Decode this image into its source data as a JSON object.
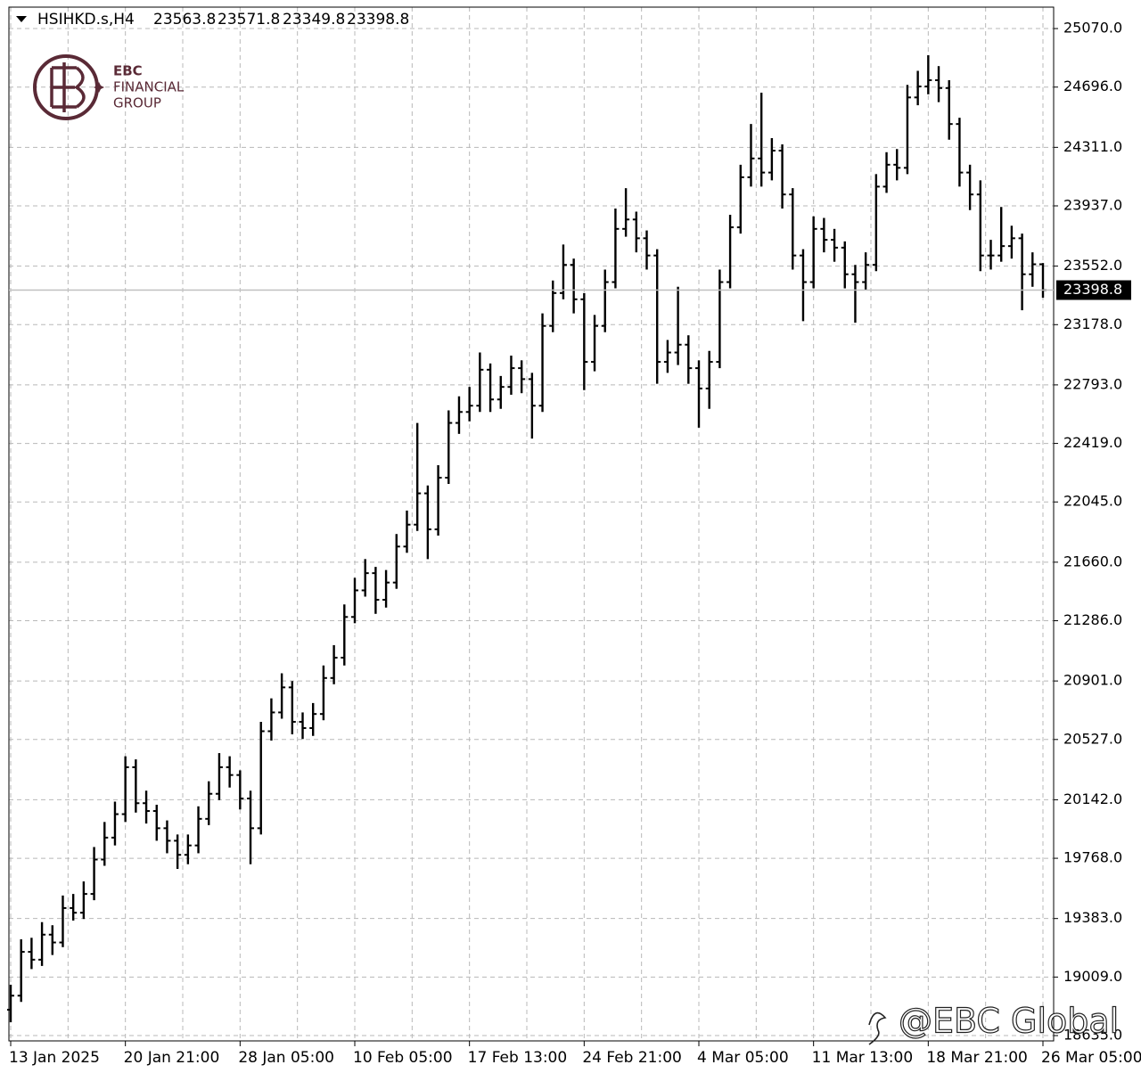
{
  "chart_data": {
    "type": "ohlc",
    "title": "HSIHKD.s,H4",
    "color": "#000000",
    "grid": true,
    "ylim": [
      18601,
      25207
    ],
    "yticks": [
      {
        "value": 25070,
        "label": "25070.0"
      },
      {
        "value": 24696,
        "label": "24696.0"
      },
      {
        "value": 24311,
        "label": "24311.0"
      },
      {
        "value": 23937,
        "label": "23937.0"
      },
      {
        "value": 23552,
        "label": "23552.0"
      },
      {
        "value": 23178,
        "label": "23178.0"
      },
      {
        "value": 22793,
        "label": "22793.0"
      },
      {
        "value": 22419,
        "label": "22419.0"
      },
      {
        "value": 22045,
        "label": "22045.0"
      },
      {
        "value": 21660,
        "label": "21660.0"
      },
      {
        "value": 21286,
        "label": "21286.0"
      },
      {
        "value": 20901,
        "label": "20901.0"
      },
      {
        "value": 20527,
        "label": "20527.0"
      },
      {
        "value": 20142,
        "label": "20142.0"
      },
      {
        "value": 19768,
        "label": "19768.0"
      },
      {
        "value": 19383,
        "label": "19383.0"
      },
      {
        "value": 19009,
        "label": "19009.0"
      },
      {
        "value": 18635,
        "label": "18635.0"
      }
    ],
    "categories": [
      "13 Jan 2025",
      null,
      null,
      null,
      null,
      null,
      null,
      null,
      null,
      null,
      null,
      "20 Jan 21:00",
      null,
      null,
      null,
      null,
      null,
      null,
      null,
      null,
      null,
      null,
      "28 Jan 05:00",
      null,
      null,
      null,
      null,
      null,
      null,
      null,
      null,
      null,
      null,
      "10 Feb 05:00",
      null,
      null,
      null,
      null,
      null,
      null,
      null,
      null,
      null,
      null,
      "17 Feb 13:00",
      null,
      null,
      null,
      null,
      null,
      null,
      null,
      null,
      null,
      null,
      "24 Feb 21:00",
      null,
      null,
      null,
      null,
      null,
      null,
      null,
      null,
      null,
      null,
      "4 Mar 05:00",
      null,
      null,
      null,
      null,
      null,
      null,
      null,
      null,
      null,
      null,
      "11 Mar 13:00",
      null,
      null,
      null,
      null,
      null,
      null,
      null,
      null,
      null,
      null,
      "18 Mar 21:00",
      null,
      null,
      null,
      null,
      null,
      null,
      null,
      null,
      null,
      null,
      "26 Mar 05:00"
    ],
    "open": [
      18800,
      18890,
      19170,
      19120,
      19280,
      19230,
      19450,
      19420,
      19540,
      19760,
      19900,
      20050,
      20350,
      20120,
      20070,
      19960,
      19880,
      19790,
      19850,
      20020,
      20180,
      20350,
      20300,
      20150,
      19960,
      20580,
      20700,
      20860,
      20640,
      20600,
      20690,
      20920,
      21050,
      21310,
      21480,
      21590,
      21420,
      21530,
      21760,
      21900,
      22100,
      21870,
      22200,
      22550,
      22620,
      22660,
      22890,
      22700,
      22780,
      22900,
      22830,
      22660,
      23170,
      23380,
      23560,
      23340,
      22940,
      23170,
      23450,
      23790,
      23850,
      23730,
      23620,
      22940,
      23000,
      23050,
      22900,
      22770,
      22940,
      23450,
      23800,
      24120,
      24240,
      24150,
      24290,
      24010,
      23620,
      23450,
      23790,
      23720,
      23670,
      23500,
      23450,
      23560,
      24060,
      24200,
      24180,
      24630,
      24700,
      24740,
      24690,
      24460,
      24150,
      24010,
      23620,
      23620,
      23680,
      23730,
      23500,
      23563.8
    ],
    "high": [
      18960,
      19250,
      19260,
      19360,
      19340,
      19530,
      19540,
      19620,
      19840,
      20000,
      20130,
      20420,
      20400,
      20200,
      20110,
      20010,
      19920,
      19920,
      20100,
      20260,
      20440,
      20420,
      20330,
      20200,
      20640,
      20790,
      20950,
      20900,
      20700,
      20760,
      21000,
      21130,
      21390,
      21560,
      21680,
      21630,
      21610,
      21840,
      21990,
      22550,
      22150,
      22280,
      22630,
      22720,
      22780,
      23000,
      22930,
      22850,
      22980,
      22950,
      22870,
      23250,
      23460,
      23690,
      23600,
      23380,
      23240,
      23530,
      23920,
      24050,
      23900,
      23780,
      23660,
      23080,
      23420,
      23110,
      22950,
      23010,
      23530,
      23880,
      24200,
      24460,
      24660,
      24370,
      24330,
      24050,
      23660,
      23870,
      23860,
      23790,
      23710,
      23560,
      23640,
      24140,
      24280,
      24300,
      24710,
      24800,
      24900,
      24830,
      24740,
      24500,
      24200,
      24100,
      23720,
      23930,
      23810,
      23760,
      23640,
      23571.8
    ],
    "low": [
      18720,
      18850,
      19060,
      19080,
      19150,
      19200,
      19370,
      19380,
      19500,
      19720,
      19850,
      20000,
      20060,
      19990,
      19880,
      19800,
      19700,
      19730,
      19800,
      19980,
      20140,
      20220,
      20080,
      19730,
      19920,
      20520,
      20660,
      20560,
      20530,
      20550,
      20650,
      20880,
      21000,
      21270,
      21440,
      21330,
      21370,
      21490,
      21720,
      21860,
      21680,
      21830,
      22160,
      22480,
      22560,
      22620,
      22620,
      22640,
      22730,
      22740,
      22450,
      22620,
      23130,
      23340,
      23250,
      22760,
      22880,
      23130,
      23410,
      23740,
      23640,
      23530,
      22800,
      22870,
      22920,
      22800,
      22520,
      22640,
      22900,
      23410,
      23760,
      24060,
      24060,
      24100,
      23920,
      23530,
      23200,
      23410,
      23640,
      23580,
      23410,
      23190,
      23400,
      23520,
      24020,
      24100,
      24140,
      24580,
      24650,
      24600,
      24360,
      24060,
      23910,
      23520,
      23530,
      23580,
      23600,
      23270,
      23420,
      23349.8
    ],
    "close": [
      18890,
      19170,
      19120,
      19280,
      19230,
      19450,
      19420,
      19540,
      19760,
      19900,
      20050,
      20350,
      20120,
      20070,
      19960,
      19880,
      19790,
      19850,
      20020,
      20180,
      20350,
      20300,
      20150,
      19960,
      20580,
      20700,
      20860,
      20640,
      20600,
      20690,
      20920,
      21050,
      21310,
      21480,
      21590,
      21420,
      21530,
      21760,
      21900,
      22100,
      21870,
      22200,
      22550,
      22620,
      22660,
      22890,
      22700,
      22780,
      22900,
      22830,
      22660,
      23170,
      23380,
      23560,
      23340,
      22940,
      23170,
      23450,
      23790,
      23850,
      23730,
      23620,
      22940,
      23000,
      23050,
      22900,
      22770,
      22940,
      23450,
      23800,
      24120,
      24240,
      24150,
      24290,
      24010,
      23620,
      23450,
      23790,
      23720,
      23670,
      23500,
      23450,
      23560,
      24060,
      24200,
      24180,
      24630,
      24700,
      24740,
      24690,
      24460,
      24150,
      24010,
      23620,
      23620,
      23680,
      23730,
      23500,
      23563.8,
      23398.8
    ]
  },
  "logo": {
    "line1": "EBC",
    "line2": "FINANCIAL",
    "line3": "GROUP"
  },
  "watermark": "@EBC Global"
}
